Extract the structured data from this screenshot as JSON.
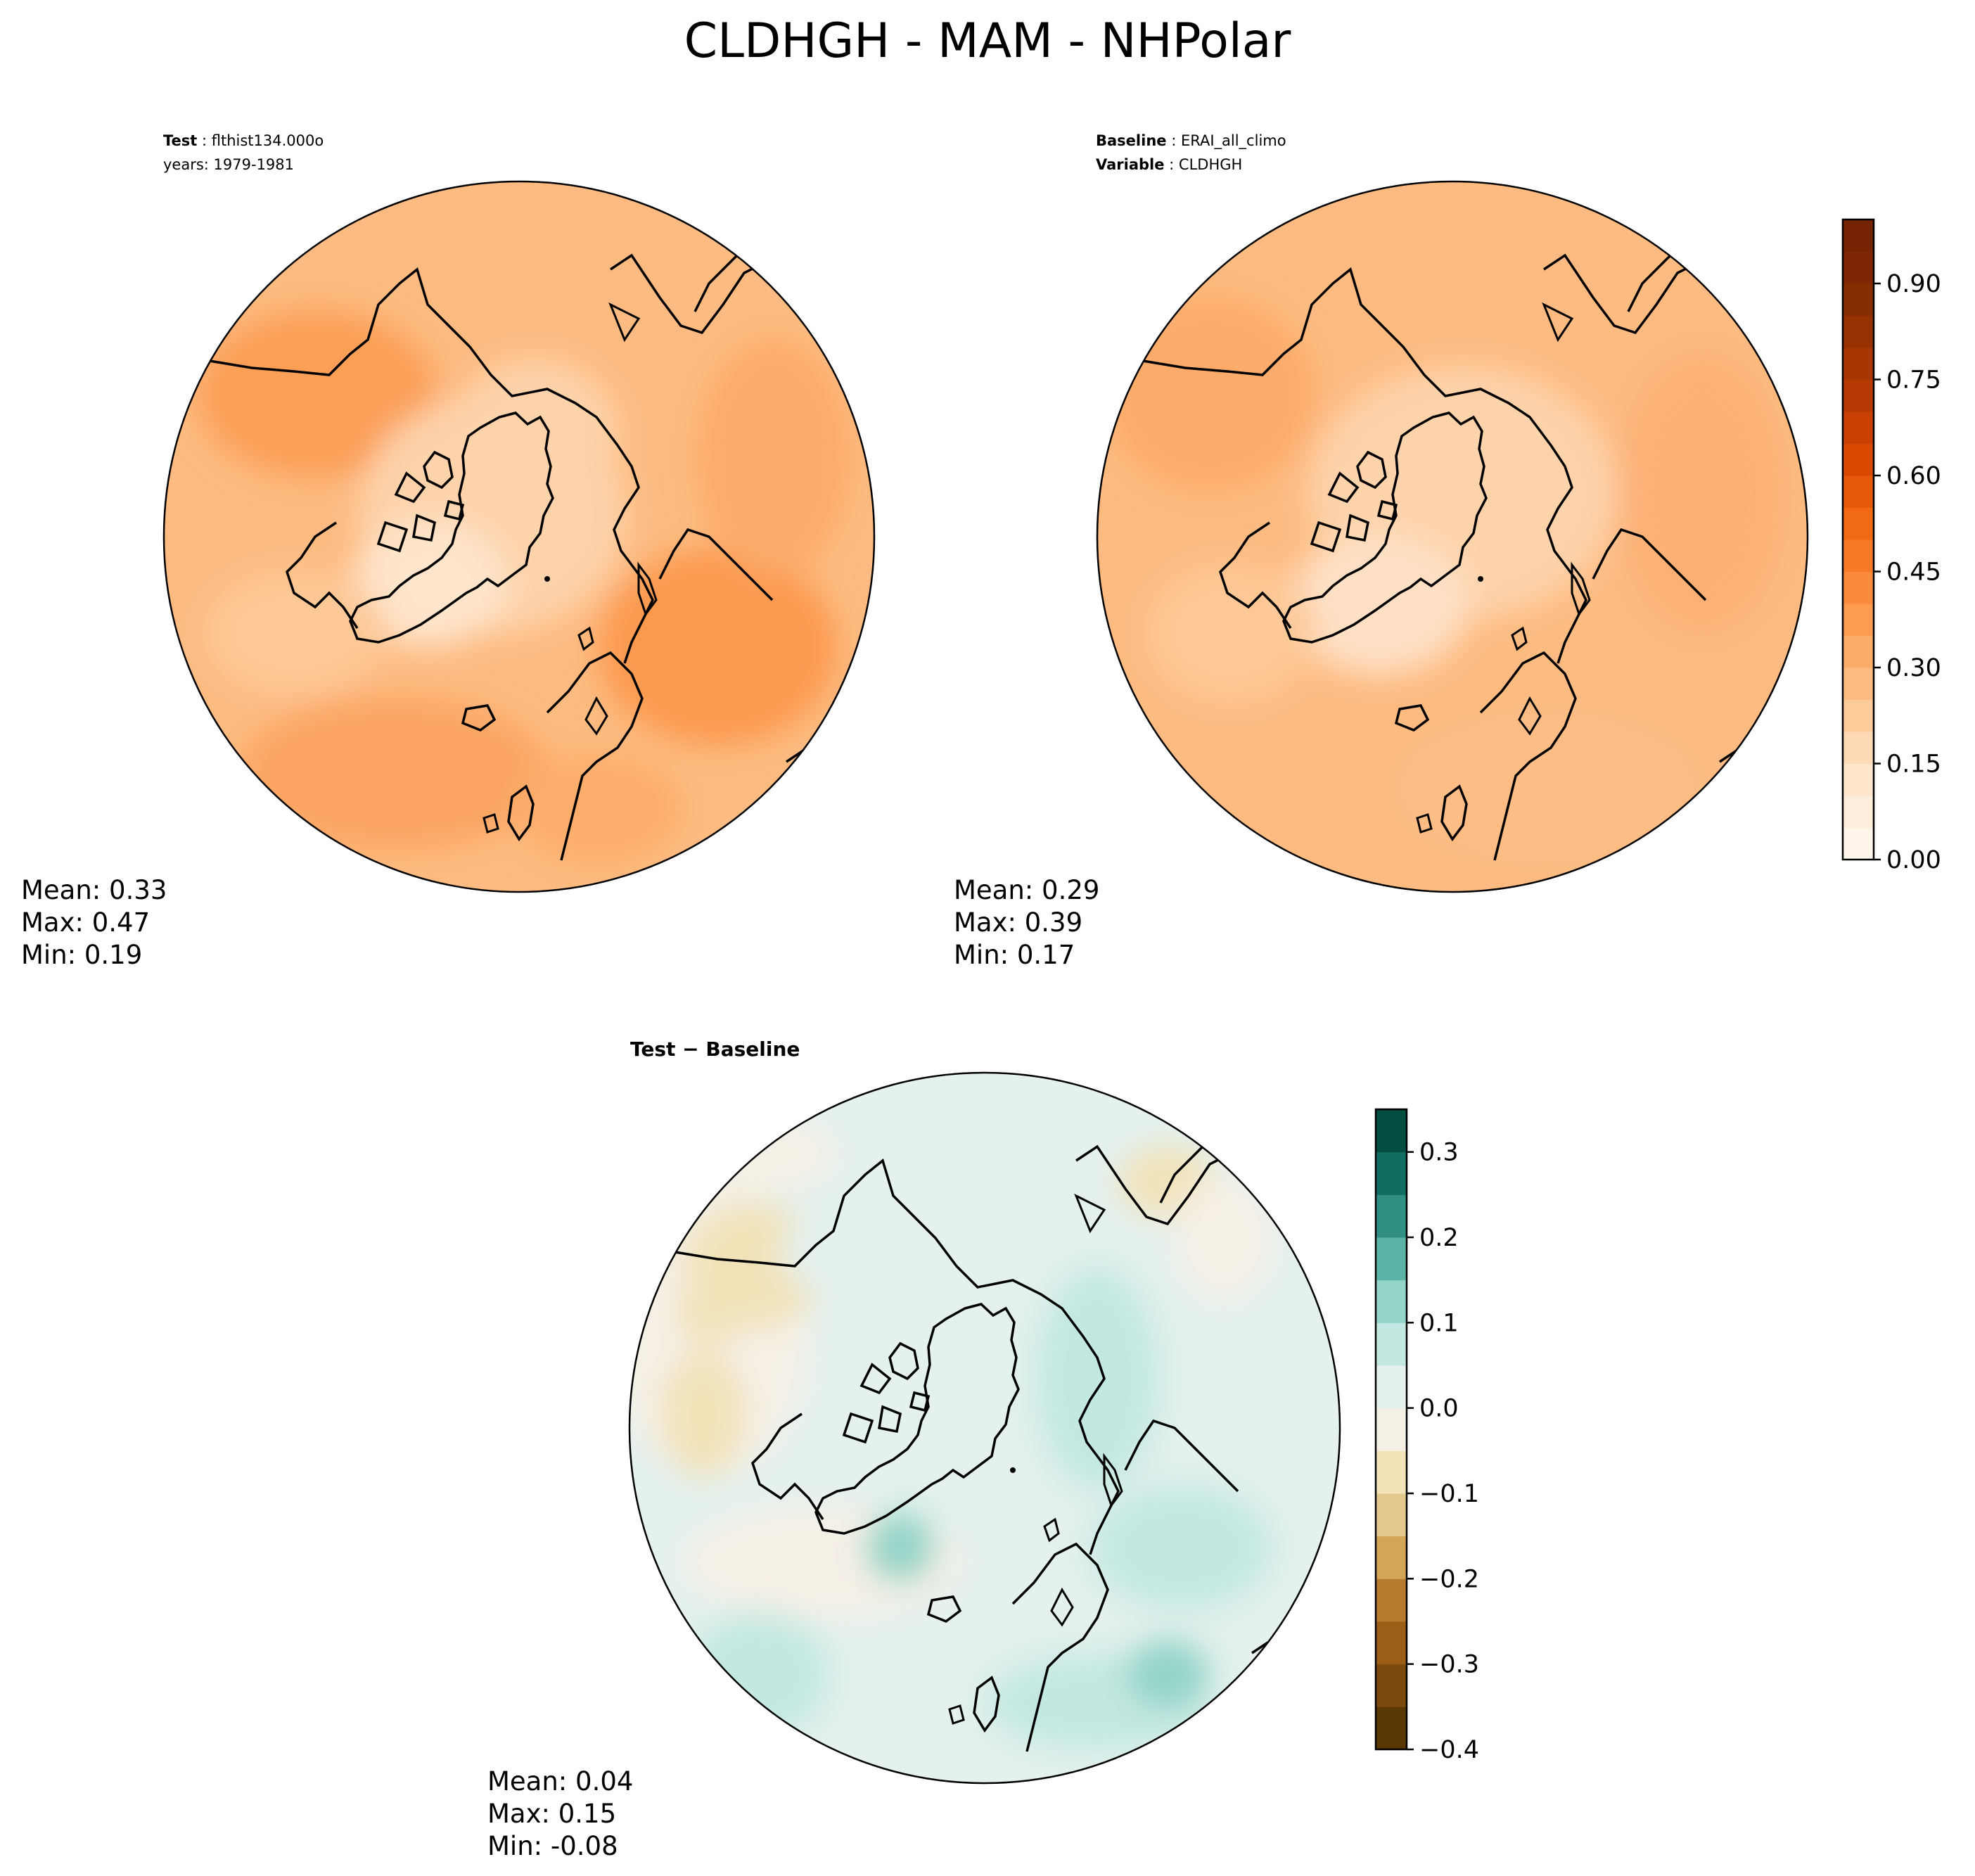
{
  "figure": {
    "title": "CLDHGH - MAM - NHPolar"
  },
  "panels": {
    "test": {
      "label_bold": "Test",
      "label_value": "flthist134.000o",
      "years_line": "years: 1979-1981",
      "mean": "Mean:  0.33",
      "max": "Max:  0.47",
      "min": "Min:  0.19"
    },
    "baseline": {
      "label_bold": "Baseline",
      "label_value": "ERAI_all_climo",
      "variable_bold": "Variable",
      "variable_value": "CLDHGH",
      "mean": "Mean:  0.29",
      "max": "Max:  0.39",
      "min": "Min:  0.17"
    },
    "difference": {
      "title": "Test − Baseline",
      "mean": "Mean:  0.04",
      "max": "Max:  0.15",
      "min": "Min: -0.08"
    }
  },
  "colorbars": {
    "main": {
      "ticks": [
        "0.00",
        "0.15",
        "0.30",
        "0.45",
        "0.60",
        "0.75",
        "0.90"
      ],
      "levels": [
        0,
        0.05,
        0.1,
        0.15,
        0.2,
        0.25,
        0.3,
        0.35,
        0.4,
        0.45,
        0.5,
        0.55,
        0.6,
        0.65,
        0.7,
        0.75,
        0.8,
        0.85,
        0.9,
        0.95,
        1.0
      ],
      "colors": [
        "#fff5eb",
        "#feeddb",
        "#fee5cb",
        "#fdd9b4",
        "#fdcb9a",
        "#fdbb81",
        "#fdab68",
        "#fd9b51",
        "#fb8a3c",
        "#f77a28",
        "#f16913",
        "#e6590b",
        "#d94801",
        "#c94002",
        "#b63803",
        "#a63603",
        "#963102",
        "#862d02",
        "#7f2704",
        "#762304"
      ]
    },
    "diff": {
      "ticks": [
        "0.3",
        "0.2",
        "0.1",
        "0.0",
        "−0.1",
        "−0.2",
        "−0.3",
        "−0.4"
      ],
      "levels": [
        -0.4,
        -0.35,
        -0.3,
        -0.25,
        -0.2,
        -0.15,
        -0.1,
        -0.05,
        0,
        0.05,
        0.1,
        0.15,
        0.2,
        0.25,
        0.3,
        0.35
      ],
      "colors": [
        "#5a3805",
        "#7d4a0d",
        "#9c5d16",
        "#b87a2d",
        "#d3a656",
        "#e3c98d",
        "#f1e2b8",
        "#f5f0e6",
        "#e4f1ee",
        "#c3e8e1",
        "#93d4c7",
        "#5cb4a6",
        "#2f8f82",
        "#0f6e61",
        "#014d40"
      ]
    }
  },
  "maps": {
    "test": {
      "mean_field": 0.33,
      "max_field": 0.47,
      "min_field": 0.19
    },
    "baseline": {
      "mean_field": 0.29,
      "max_field": 0.39,
      "min_field": 0.17
    },
    "difference": {
      "mean_field": 0.04,
      "max_field": 0.15,
      "min_field": -0.08
    }
  }
}
